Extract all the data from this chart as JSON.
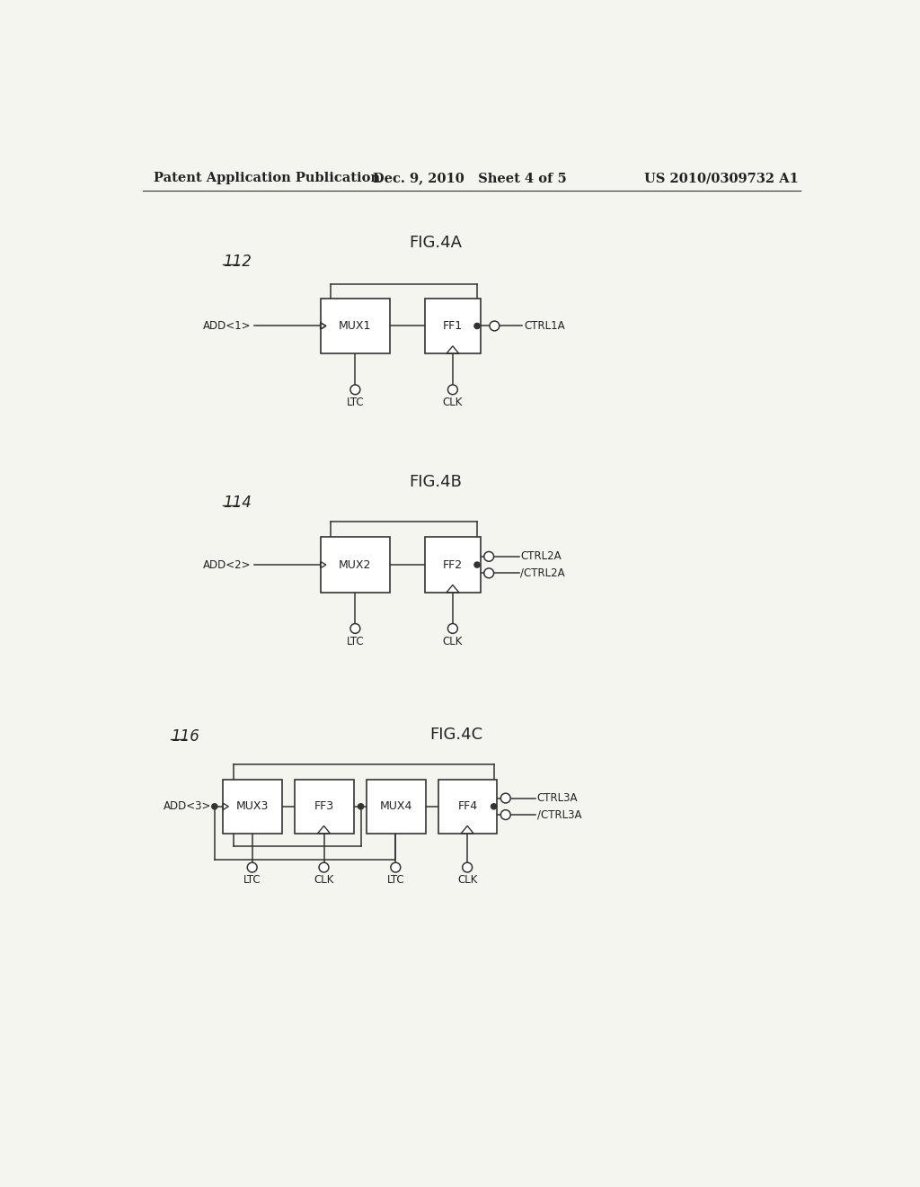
{
  "bg_color": "#f5f5f0",
  "text_color": "#222222",
  "header_left": "Patent Application Publication",
  "header_mid": "Dec. 9, 2010   Sheet 4 of 5",
  "header_right": "US 2010/0309732 A1",
  "fig4a_label": "FIG.4A",
  "fig4b_label": "FIG.4B",
  "fig4c_label": "FIG.4C",
  "line_color": "#333333",
  "font_size_header": 10.5,
  "font_size_label": 13,
  "font_size_small": 9,
  "font_size_ref": 12
}
